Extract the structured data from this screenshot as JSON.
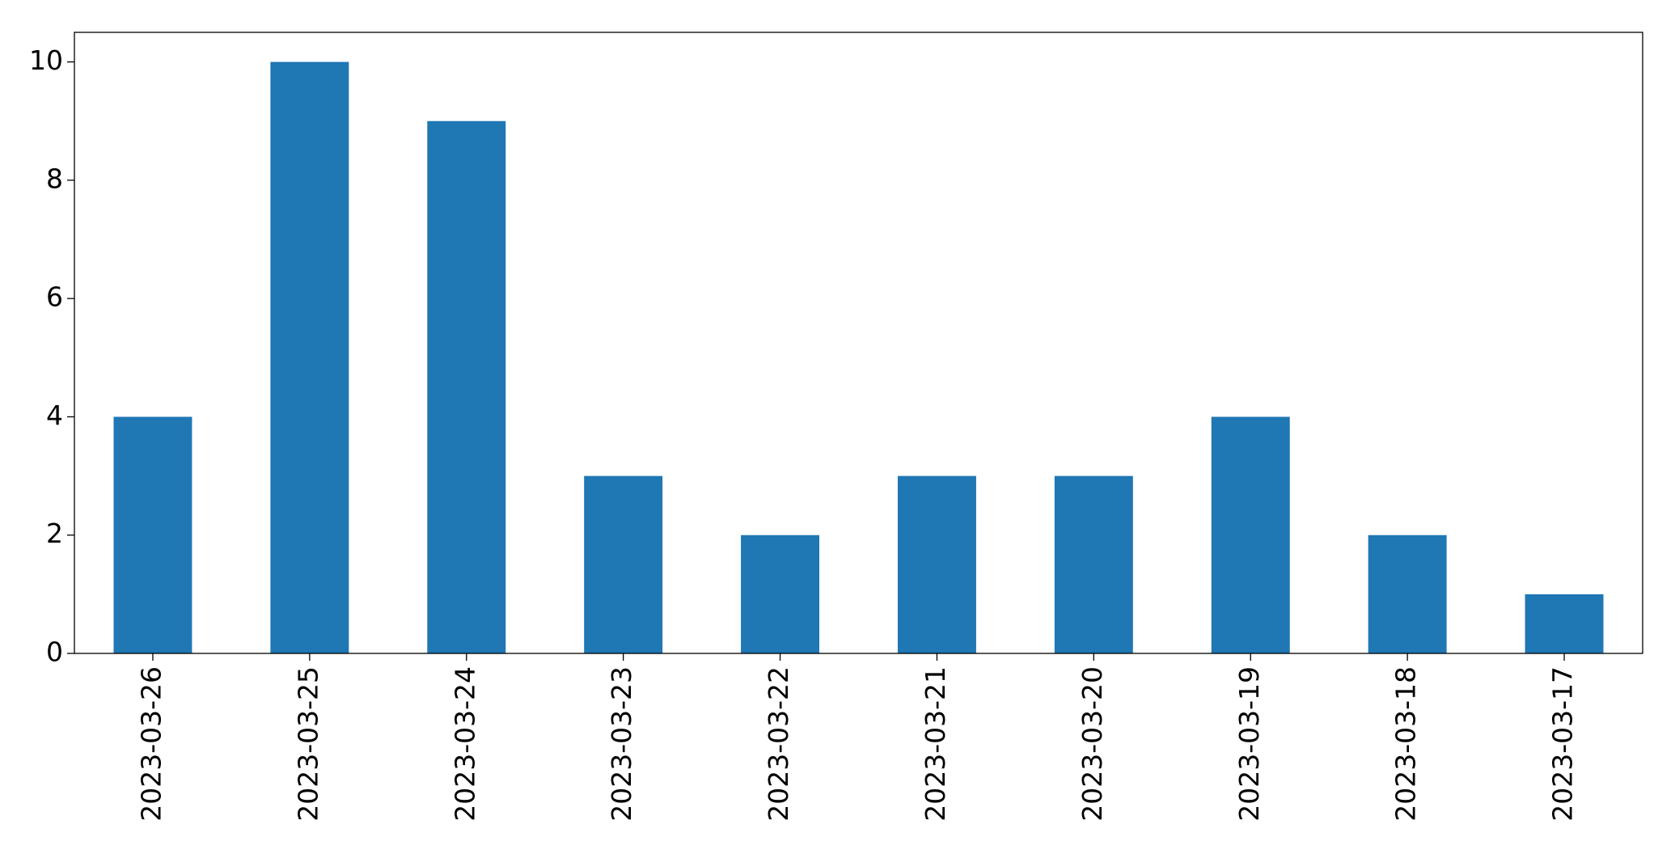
{
  "chart_data": {
    "type": "bar",
    "categories": [
      "2023-03-26",
      "2023-03-25",
      "2023-03-24",
      "2023-03-23",
      "2023-03-22",
      "2023-03-21",
      "2023-03-20",
      "2023-03-19",
      "2023-03-18",
      "2023-03-17"
    ],
    "values": [
      4,
      10,
      9,
      3,
      2,
      3,
      3,
      4,
      2,
      1
    ],
    "color": "#1f77b4",
    "ylim": [
      0,
      10.5
    ],
    "yticks": [
      0,
      2,
      4,
      6,
      8,
      10
    ],
    "grid": false
  }
}
